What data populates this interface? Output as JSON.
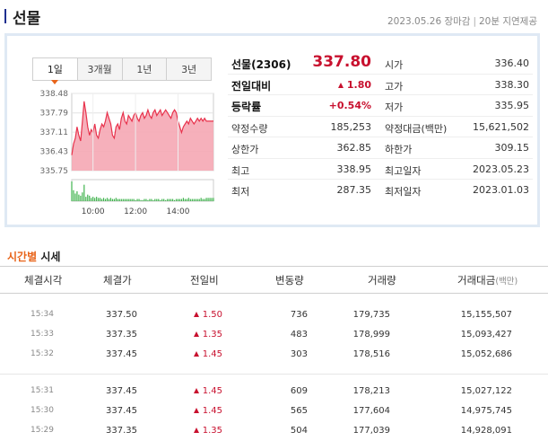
{
  "header": {
    "title": "선물",
    "date": "2023.05.26",
    "market_status": "장마감",
    "delay_note": "20분 지연제공"
  },
  "chart_tabs": [
    {
      "label": "1일",
      "active": true
    },
    {
      "label": "3개월",
      "active": false
    },
    {
      "label": "1년",
      "active": false
    },
    {
      "label": "3년",
      "active": false
    }
  ],
  "chart_data": {
    "type": "area",
    "title": "",
    "xlabel": "",
    "ylabel": "",
    "x_ticks": [
      "10:00",
      "12:00",
      "14:00"
    ],
    "y_ticks": [
      "338.48",
      "337.79",
      "337.11",
      "336.43",
      "335.75"
    ],
    "ylim": [
      335.75,
      338.48
    ],
    "x": [
      "09:00",
      "09:05",
      "09:10",
      "09:15",
      "09:20",
      "09:25",
      "09:30",
      "09:35",
      "09:40",
      "09:45",
      "09:50",
      "09:55",
      "10:00",
      "10:05",
      "10:10",
      "10:15",
      "10:20",
      "10:25",
      "10:30",
      "10:35",
      "10:40",
      "10:45",
      "10:50",
      "10:55",
      "11:00",
      "11:05",
      "11:10",
      "11:15",
      "11:20",
      "11:25",
      "11:30",
      "11:35",
      "11:40",
      "11:45",
      "11:50",
      "11:55",
      "12:00",
      "12:05",
      "12:10",
      "12:15",
      "12:20",
      "12:25",
      "12:30",
      "12:35",
      "12:40",
      "12:45",
      "12:50",
      "12:55",
      "13:00",
      "13:05",
      "13:10",
      "13:15",
      "13:20",
      "13:25",
      "13:30",
      "13:35",
      "13:40",
      "13:45",
      "13:50",
      "13:55",
      "14:00",
      "14:05",
      "14:10",
      "14:15",
      "14:20",
      "14:25",
      "14:30",
      "14:35",
      "14:40",
      "14:45",
      "14:50",
      "14:55",
      "15:00",
      "15:05",
      "15:10",
      "15:15",
      "15:20",
      "15:30",
      "15:35",
      "15:40",
      "15:45"
    ],
    "values": [
      336.3,
      336.7,
      336.9,
      337.3,
      337.0,
      336.8,
      337.5,
      338.2,
      337.8,
      337.3,
      337.0,
      337.2,
      337.1,
      337.4,
      337.0,
      336.9,
      337.2,
      337.4,
      337.3,
      337.5,
      337.8,
      337.6,
      337.4,
      337.0,
      336.9,
      337.3,
      337.4,
      337.2,
      337.6,
      337.8,
      337.5,
      337.4,
      337.7,
      337.6,
      337.5,
      337.7,
      337.8,
      337.6,
      337.5,
      337.7,
      337.8,
      337.6,
      337.7,
      337.9,
      337.7,
      337.6,
      337.8,
      337.9,
      337.7,
      337.8,
      337.9,
      337.7,
      337.8,
      337.9,
      337.8,
      337.7,
      337.6,
      337.8,
      337.9,
      337.8,
      337.5,
      337.3,
      337.1,
      337.3,
      337.4,
      337.5,
      337.4,
      337.6,
      337.5,
      337.4,
      337.5,
      337.6,
      337.5,
      337.6,
      337.5,
      337.6,
      337.5,
      337.5,
      337.5,
      337.5,
      337.5
    ],
    "volume": [
      18,
      10,
      7,
      9,
      6,
      5,
      8,
      15,
      4,
      6,
      5,
      3,
      4,
      3,
      4,
      3,
      3,
      2,
      3,
      2,
      3,
      2,
      3,
      2,
      2,
      3,
      2,
      2,
      2,
      2,
      2,
      2,
      2,
      2,
      2,
      2,
      1,
      2,
      2,
      1,
      1,
      2,
      2,
      1,
      2,
      2,
      1,
      2,
      2,
      2,
      1,
      2,
      2,
      1,
      2,
      2,
      2,
      2,
      1,
      2,
      2,
      2,
      2,
      3,
      2,
      2,
      3,
      2,
      2,
      2,
      2,
      2,
      2,
      3,
      2,
      2,
      3,
      3,
      3,
      3,
      3
    ],
    "colors": {
      "line": "#e8324c",
      "fill": "#f5a7b4",
      "volume": "#3cb24a",
      "volume_dark": "#2b8f37"
    }
  },
  "quote": {
    "name_label": "선물(2306)",
    "price": "337.80",
    "change_label": "전일대비",
    "change": "1.80",
    "rate_label": "등락률",
    "rate": "+0.54%",
    "volume_label": "약정수량",
    "volume": "185,253",
    "upper_limit_label": "상한가",
    "upper_limit": "362.85",
    "high_label": "최고",
    "high": "338.95",
    "low_label": "최저",
    "low": "287.35",
    "open_label": "시가",
    "open": "336.40",
    "day_high_label": "고가",
    "day_high": "338.30",
    "day_low_label": "저가",
    "day_low": "335.95",
    "amount_label": "약정대금(백만)",
    "amount": "15,621,502",
    "lower_limit_label": "하한가",
    "lower_limit": "309.15",
    "high_date_label": "최고일자",
    "high_date": "2023.05.23",
    "low_date_label": "최저일자",
    "low_date": "2023.01.03",
    "up_color": "#c8102e"
  },
  "section": {
    "title_accent": "시간별",
    "title_rest": "시세"
  },
  "table": {
    "headers": {
      "time": "체결시각",
      "price": "체결가",
      "change": "전일비",
      "delta_volume": "변동량",
      "volume": "거래량",
      "amount": "거래대금",
      "amount_unit": "(백만)"
    },
    "rows": [
      {
        "time": "15:34",
        "price": "337.50",
        "change": "1.50",
        "delta": "736",
        "volume": "179,735",
        "amount": "15,155,507"
      },
      {
        "time": "15:33",
        "price": "337.35",
        "change": "1.35",
        "delta": "483",
        "volume": "178,999",
        "amount": "15,093,427"
      },
      {
        "time": "15:32",
        "price": "337.45",
        "change": "1.45",
        "delta": "303",
        "volume": "178,516",
        "amount": "15,052,686"
      },
      {
        "time": "15:31",
        "price": "337.45",
        "change": "1.45",
        "delta": "609",
        "volume": "178,213",
        "amount": "15,027,122"
      },
      {
        "time": "15:30",
        "price": "337.45",
        "change": "1.45",
        "delta": "565",
        "volume": "177,604",
        "amount": "14,975,745"
      },
      {
        "time": "15:29",
        "price": "337.35",
        "change": "1.35",
        "delta": "504",
        "volume": "177,039",
        "amount": "14,928,091"
      }
    ]
  }
}
